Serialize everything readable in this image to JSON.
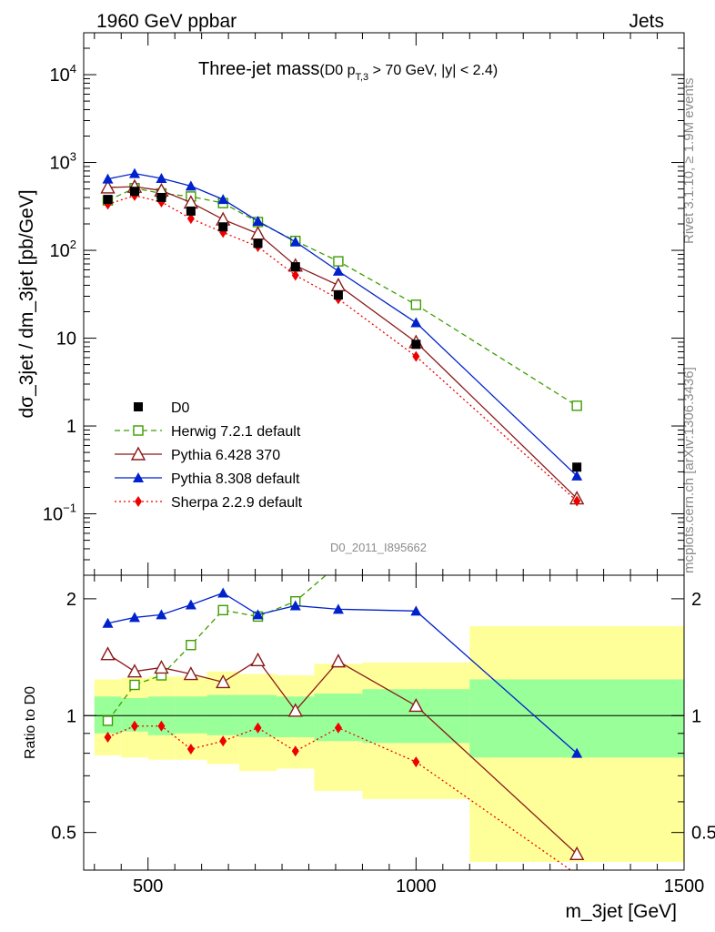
{
  "header": {
    "left": "1960 GeV ppbar",
    "right": "Jets"
  },
  "side_text": {
    "rivet": "Rivet 3.1.10, ≥ 1.9M events",
    "mcplots": "mcplots.cern.ch [arXiv:1306.3436]"
  },
  "chart_data": [
    {
      "type": "line",
      "title": "Three-jet mass",
      "subtitle_prefix": "(D0 p",
      "subtitle_sub": "T,3",
      "subtitle_suffix": " > 70 GeV, |y| < 2.4)",
      "ylabel": "dσ_3jet / dm_3jet [pb/GeV]",
      "xlabel": "",
      "yscale": "log",
      "xlim": [
        380,
        1500
      ],
      "ylim": [
        0.02,
        30000
      ],
      "yticks": [
        {
          "v": 0.1,
          "base": "10",
          "exp": "−1"
        },
        {
          "v": 1,
          "base": "1",
          "exp": ""
        },
        {
          "v": 10,
          "base": "10",
          "exp": ""
        },
        {
          "v": 100,
          "base": "10",
          "exp": "2"
        },
        {
          "v": 1000,
          "base": "10",
          "exp": "3"
        },
        {
          "v": 10000,
          "base": "10",
          "exp": "4"
        }
      ],
      "watermark": "D0_2011_I895662",
      "legend_position": "bottom-left",
      "series": [
        {
          "name": "D0",
          "color": "#000000",
          "marker": "square",
          "dash": "",
          "x": [
            425,
            475,
            525,
            580,
            640,
            705,
            775,
            855,
            1000,
            1300
          ],
          "y": [
            380,
            470,
            400,
            280,
            185,
            120,
            65,
            31,
            8.5,
            0.34
          ]
        },
        {
          "name": "Herwig 7.2.1 default",
          "color": "#3d9d00",
          "marker": "open-square",
          "dash": "6,4",
          "x": [
            425,
            475,
            525,
            580,
            640,
            705,
            775,
            855,
            1000,
            1300
          ],
          "y": [
            370,
            510,
            445,
            410,
            345,
            210,
            128,
            75,
            24,
            1.7
          ]
        },
        {
          "name": "Pythia 6.428 370",
          "color": "#8b1a1a",
          "marker": "open-triangle",
          "dash": "",
          "x": [
            425,
            475,
            525,
            580,
            640,
            705,
            775,
            855,
            1000,
            1300
          ],
          "y": [
            520,
            530,
            480,
            350,
            225,
            155,
            67,
            40,
            9,
            0.15
          ]
        },
        {
          "name": "Pythia 8.308 default",
          "color": "#0022cc",
          "marker": "triangle",
          "dash": "",
          "x": [
            425,
            475,
            525,
            580,
            640,
            705,
            775,
            855,
            1000,
            1300
          ],
          "y": [
            650,
            750,
            660,
            540,
            380,
            215,
            125,
            58,
            15,
            0.27
          ]
        },
        {
          "name": "Sherpa 2.2.9 default",
          "color": "#ee0000",
          "marker": "diamond",
          "dash": "2,3",
          "x": [
            425,
            475,
            525,
            580,
            640,
            705,
            775,
            855,
            1000,
            1300
          ],
          "y": [
            335,
            420,
            355,
            230,
            160,
            110,
            52,
            28,
            6.2,
            0.14
          ]
        }
      ]
    },
    {
      "type": "line",
      "title": "",
      "ylabel": "Ratio to D0",
      "xlabel": "m_3jet [GeV]",
      "yscale": "log",
      "xlim": [
        380,
        1500
      ],
      "ylim": [
        0.4,
        2.3
      ],
      "yticks": [
        {
          "v": 0.5,
          "label": "0.5"
        },
        {
          "v": 1,
          "label": "1"
        },
        {
          "v": 2,
          "label": "2"
        }
      ],
      "xticks": [
        {
          "v": 500,
          "label": "500"
        },
        {
          "v": 1000,
          "label": "1000"
        },
        {
          "v": 1500,
          "label": "1500"
        }
      ],
      "bins": [
        [
          400,
          450
        ],
        [
          450,
          500
        ],
        [
          500,
          550
        ],
        [
          550,
          610
        ],
        [
          610,
          670
        ],
        [
          670,
          740
        ],
        [
          740,
          810
        ],
        [
          810,
          900
        ],
        [
          900,
          1100
        ],
        [
          1100,
          1500
        ]
      ],
      "band_stat": [
        [
          0.9,
          1.12
        ],
        [
          0.91,
          1.11
        ],
        [
          0.89,
          1.12
        ],
        [
          0.9,
          1.12
        ],
        [
          0.89,
          1.13
        ],
        [
          0.88,
          1.13
        ],
        [
          0.88,
          1.12
        ],
        [
          0.86,
          1.14
        ],
        [
          0.85,
          1.17
        ],
        [
          0.78,
          1.24
        ]
      ],
      "band_total": [
        [
          0.79,
          1.24
        ],
        [
          0.78,
          1.25
        ],
        [
          0.77,
          1.26
        ],
        [
          0.77,
          1.26
        ],
        [
          0.75,
          1.3
        ],
        [
          0.72,
          1.28
        ],
        [
          0.73,
          1.27
        ],
        [
          0.64,
          1.36
        ],
        [
          0.61,
          1.37
        ],
        [
          0.42,
          1.7
        ]
      ],
      "series": [
        {
          "name": "Herwig 7.2.1 default",
          "color": "#3d9d00",
          "marker": "open-square",
          "dash": "6,4",
          "x": [
            425,
            475,
            525,
            580,
            640,
            705,
            775,
            855
          ],
          "y": [
            0.97,
            1.2,
            1.27,
            1.52,
            1.87,
            1.8,
            1.97,
            2.45
          ]
        },
        {
          "name": "Pythia 6.428 370",
          "color": "#8b1a1a",
          "marker": "open-triangle",
          "dash": "",
          "x": [
            425,
            475,
            525,
            580,
            640,
            705,
            775,
            855,
            1000,
            1300
          ],
          "y": [
            1.44,
            1.3,
            1.33,
            1.28,
            1.22,
            1.39,
            1.03,
            1.38,
            1.06,
            0.44
          ]
        },
        {
          "name": "Pythia 8.308 default",
          "color": "#0022cc",
          "marker": "triangle",
          "dash": "",
          "x": [
            425,
            475,
            525,
            580,
            640,
            705,
            775,
            855,
            1000,
            1300
          ],
          "y": [
            1.73,
            1.79,
            1.82,
            1.93,
            2.07,
            1.82,
            1.92,
            1.88,
            1.86,
            0.8
          ]
        },
        {
          "name": "Sherpa 2.2.9 default",
          "color": "#ee0000",
          "marker": "diamond",
          "dash": "2,3",
          "x": [
            425,
            475,
            525,
            580,
            640,
            705,
            775,
            855,
            1000,
            1300
          ],
          "y": [
            0.88,
            0.94,
            0.94,
            0.82,
            0.86,
            0.93,
            0.81,
            0.93,
            0.76,
            0.39
          ]
        }
      ]
    }
  ]
}
